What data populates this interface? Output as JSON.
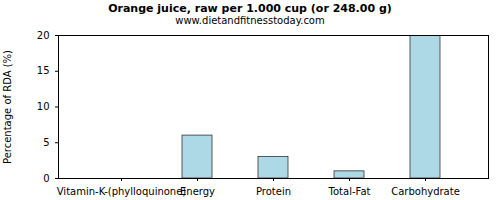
{
  "chart_data": {
    "type": "bar",
    "title": "Orange juice, raw per 1.000 cup (or 248.00 g)",
    "subtitle": "www.dietandfitnesstoday.com",
    "y_label": "Percentage of RDA (%)",
    "categories": [
      "Vitamin-K-(phylloquinone)",
      "Energy",
      "Protein",
      "Total-Fat",
      "Carbohydrate"
    ],
    "values": [
      0,
      6,
      3,
      1,
      20
    ],
    "color": "#add8e6",
    "ylim": [
      0,
      20
    ],
    "yticks": [
      0,
      5,
      10,
      15,
      20
    ],
    "grid": false
  }
}
